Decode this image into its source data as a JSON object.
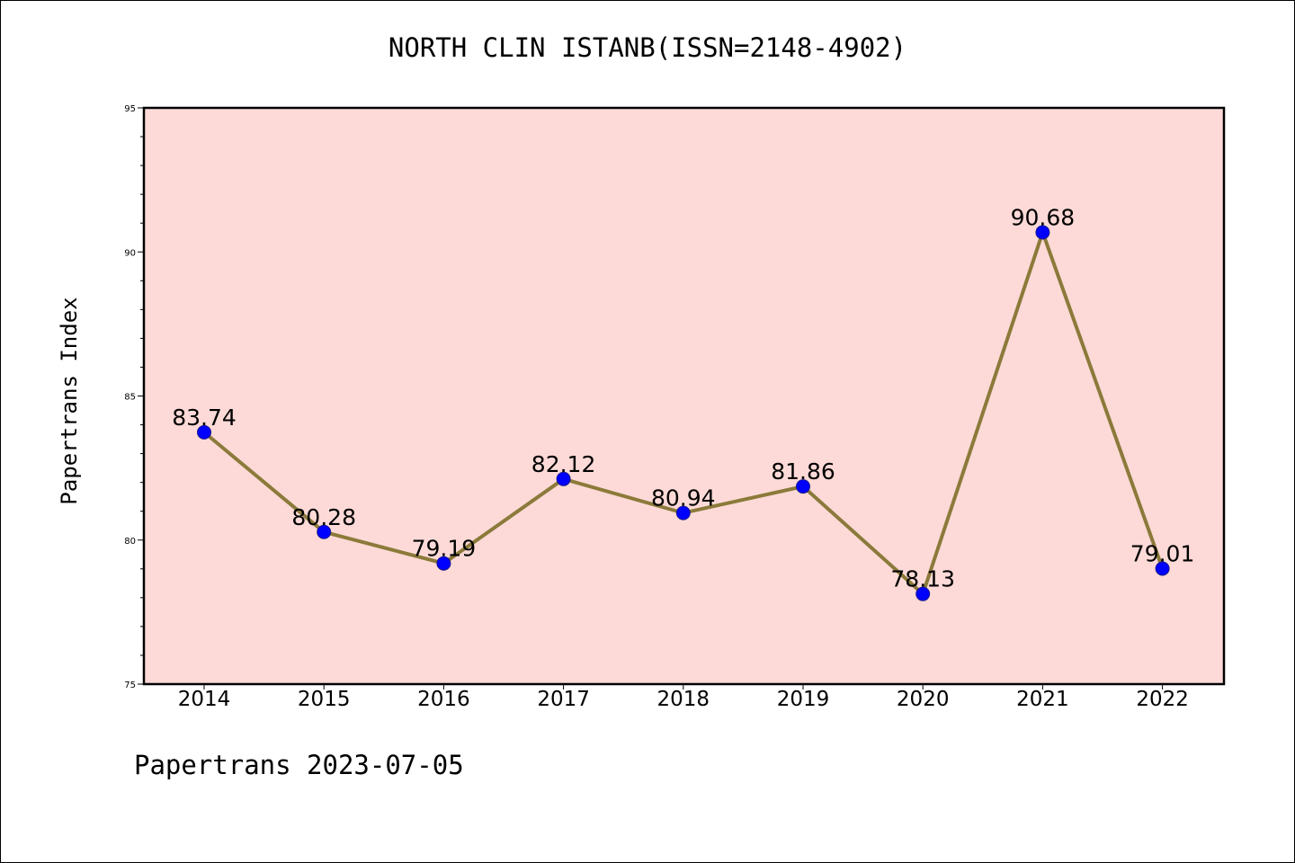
{
  "page": {
    "title": "NORTH CLIN ISTANB(ISSN=2148-4902)",
    "footer": "Papertrans 2023-07-05"
  },
  "chart_data": {
    "type": "line",
    "title": "NORTH CLIN ISTANB(ISSN=2148-4902)",
    "xlabel": "",
    "ylabel": "Papertrans Index",
    "categories": [
      "2014",
      "2015",
      "2016",
      "2017",
      "2018",
      "2019",
      "2020",
      "2021",
      "2022"
    ],
    "values": [
      83.74,
      80.28,
      79.19,
      82.12,
      80.94,
      81.86,
      78.13,
      90.68,
      79.01
    ],
    "data_labels": [
      "83.74",
      "80.28",
      "79.19",
      "82.12",
      "80.94",
      "81.86",
      "78.13",
      "90.68",
      "79.01"
    ],
    "ylim": [
      75,
      95
    ],
    "yticks": [
      75,
      80,
      85,
      90,
      95
    ],
    "grid": false,
    "colors": {
      "plot_background": "#fddad7",
      "line": "#8b7a3a",
      "marker": "#0000ff"
    }
  }
}
